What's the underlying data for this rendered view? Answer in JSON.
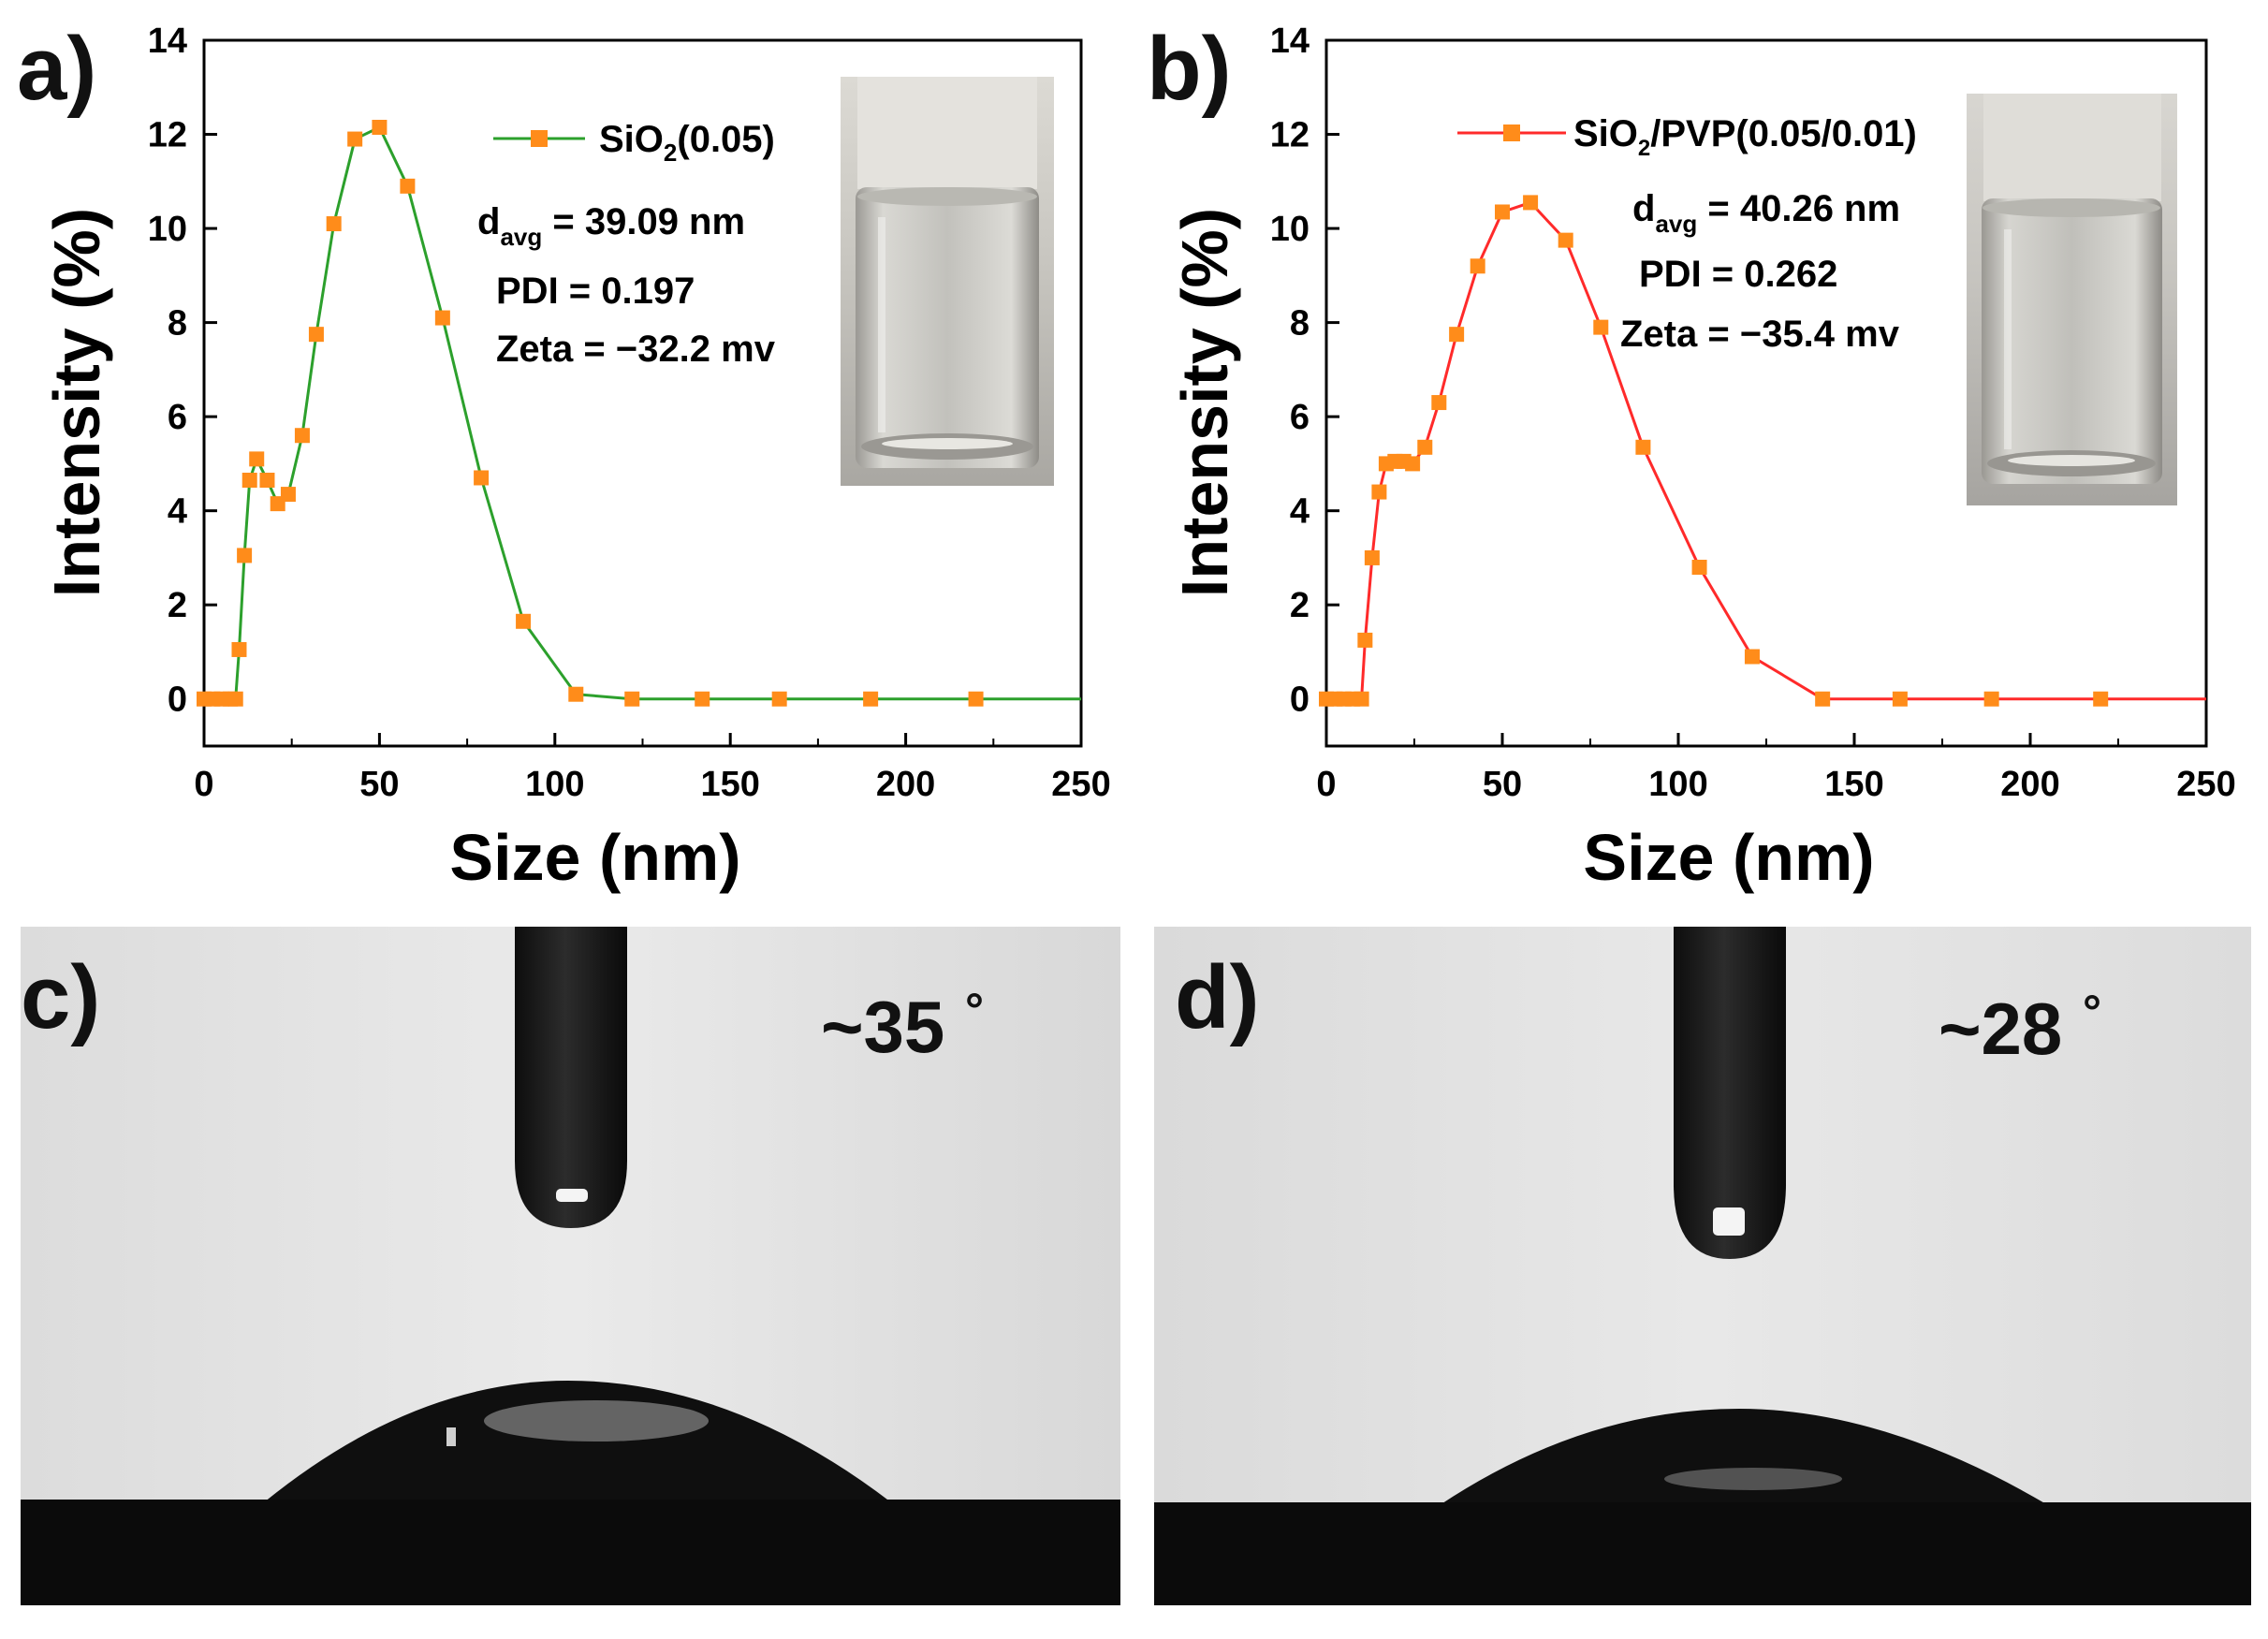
{
  "figure": {
    "panels": {
      "a": {
        "letter": "a)"
      },
      "b": {
        "letter": "b)"
      },
      "c": {
        "letter": "c)",
        "angle_text": "~35",
        "degree_symbol": "°"
      },
      "d": {
        "letter": "d)",
        "angle_text": "~28",
        "degree_symbol": "°"
      }
    }
  },
  "chart_data": [
    {
      "type": "line",
      "panel": "a",
      "xlabel": "Size (nm)",
      "ylabel": "Intensity (%)",
      "xlim": [
        0,
        250
      ],
      "ylim": [
        -1,
        14
      ],
      "xticks": [
        0,
        50,
        100,
        150,
        200,
        250
      ],
      "yticks": [
        0,
        2,
        4,
        6,
        8,
        10,
        12,
        14
      ],
      "grid": false,
      "legend_position": "top-right",
      "series": [
        {
          "name_main": "SiO",
          "name_sub": "2",
          "name_tail": "(0.05)",
          "line_color": "#2ca02c",
          "marker_color": "#ff8c1a",
          "x": [
            0,
            2.5,
            5,
            7.5,
            9,
            10,
            11.5,
            13,
            15,
            18,
            21,
            24,
            28,
            32,
            37,
            43,
            50,
            58,
            68,
            79,
            91,
            106,
            122,
            142,
            164,
            190,
            220
          ],
          "y": [
            0,
            0,
            0,
            0,
            0,
            1.05,
            3.05,
            4.65,
            5.1,
            4.65,
            4.15,
            4.35,
            5.6,
            7.75,
            10.1,
            11.9,
            12.15,
            10.9,
            8.1,
            4.7,
            1.65,
            0.1,
            0,
            0,
            0,
            0,
            0
          ]
        }
      ],
      "annotations": {
        "davg_prefix": "d",
        "davg_sub": "avg",
        "davg_value": " = 39.09 nm",
        "pdi": "PDI = 0.197",
        "zeta": "Zeta = −32.2 mv"
      }
    },
    {
      "type": "line",
      "panel": "b",
      "xlabel": "Size (nm)",
      "ylabel": "Intensity (%)",
      "xlim": [
        0,
        250
      ],
      "ylim": [
        -1,
        14
      ],
      "xticks": [
        0,
        50,
        100,
        150,
        200,
        250
      ],
      "yticks": [
        0,
        2,
        4,
        6,
        8,
        10,
        12,
        14
      ],
      "grid": false,
      "legend_position": "top-right",
      "series": [
        {
          "name_main": "SiO",
          "name_sub": "2",
          "name_tail": "/PVP(0.05/0.01)",
          "line_color": "#ff2a2a",
          "marker_color": "#ff8c1a",
          "x": [
            0,
            2.5,
            5,
            7.5,
            10,
            11,
            13,
            15,
            17,
            19.5,
            22,
            24.5,
            28,
            32,
            37,
            43,
            50,
            58,
            68,
            78,
            90,
            106,
            121,
            141,
            163,
            189,
            220
          ],
          "y": [
            0,
            0,
            0,
            0,
            0,
            1.25,
            3.0,
            4.4,
            5.0,
            5.05,
            5.05,
            5.0,
            5.35,
            6.3,
            7.75,
            9.2,
            10.35,
            10.55,
            9.75,
            7.9,
            5.35,
            2.8,
            0.9,
            0,
            0,
            0,
            0
          ]
        }
      ],
      "annotations": {
        "davg_prefix": "d",
        "davg_sub": "avg",
        "davg_value": " = 40.26 nm",
        "pdi": "PDI = 0.262",
        "zeta": "Zeta = −35.4 mv"
      }
    }
  ]
}
